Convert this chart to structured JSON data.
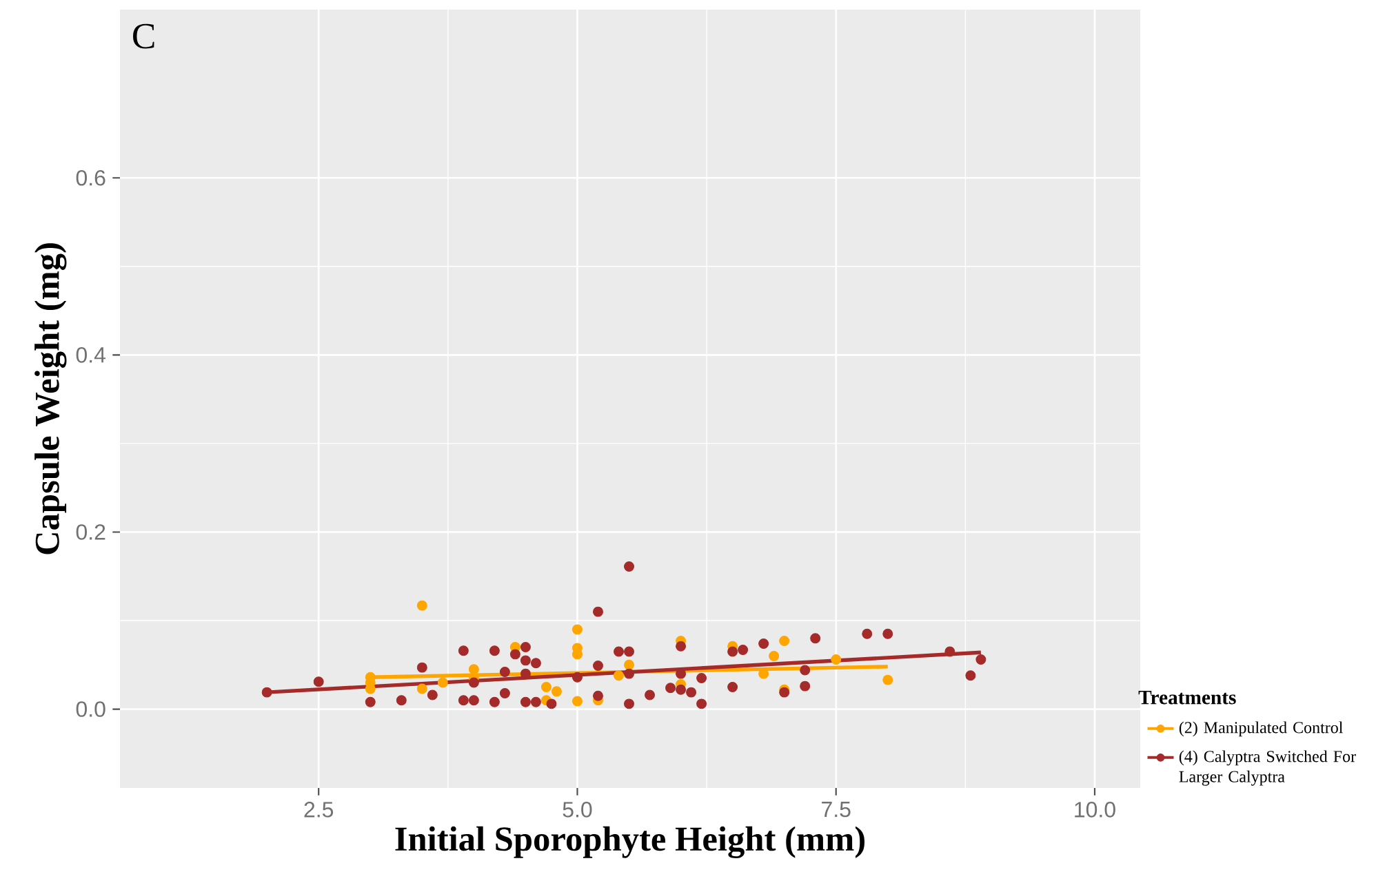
{
  "chart_data": {
    "type": "scatter",
    "xlabel": "Initial Sporophyte Height (mm)",
    "ylabel": "Capsule Weight (mg)",
    "legend_title": "Treatments",
    "annotations": [
      "C"
    ],
    "xlim": [
      0.58,
      10.44
    ],
    "ylim": [
      -0.089,
      0.79
    ],
    "xticks": [
      2.5,
      {
        "value": 5,
        "label": "5.0"
      },
      7.5,
      {
        "value": 10,
        "label": "10.0"
      }
    ],
    "yticks": [
      {
        "value": 0,
        "label": "0.0"
      },
      0.2,
      0.4,
      0.6
    ],
    "grid": true,
    "legend": "right",
    "marker": "circle",
    "series": [
      {
        "name": "(2) Manipulated Control",
        "color": "#ffa500",
        "x": [
          3.5,
          3.0,
          3.0,
          3.0,
          3.5,
          3.7,
          4.0,
          4.0,
          4.4,
          4.7,
          4.8,
          4.7,
          5.0,
          5.0,
          5.0,
          5.0,
          5.2,
          5.5,
          5.4,
          6.0,
          6.0,
          6.5,
          6.8,
          6.9,
          7.0,
          7.0,
          7.5,
          8.0
        ],
        "values": [
          0.117,
          0.036,
          0.03,
          0.023,
          0.023,
          0.03,
          0.045,
          0.035,
          0.07,
          0.025,
          0.02,
          0.01,
          0.09,
          0.069,
          0.062,
          0.009,
          0.01,
          0.05,
          0.038,
          0.077,
          0.028,
          0.071,
          0.04,
          0.06,
          0.077,
          0.022,
          0.056,
          0.033
        ]
      },
      {
        "name": "(4) Calyptra Switched For Larger Calyptra",
        "color": "#a52a2a",
        "x": [
          2.0,
          2.5,
          3.0,
          3.3,
          3.5,
          3.6,
          3.9,
          3.9,
          4.0,
          4.0,
          4.2,
          4.2,
          4.3,
          4.3,
          4.4,
          4.5,
          4.5,
          4.6,
          4.5,
          4.5,
          4.6,
          4.75,
          5.0,
          5.2,
          5.2,
          5.2,
          5.4,
          5.5,
          5.5,
          5.5,
          5.5,
          5.7,
          5.9,
          6.0,
          6.0,
          6.0,
          6.1,
          6.2,
          6.2,
          6.5,
          6.5,
          6.6,
          6.8,
          7.0,
          7.2,
          7.2,
          7.3,
          7.8,
          8.0,
          8.6,
          8.8,
          8.9
        ],
        "values": [
          0.019,
          0.031,
          0.008,
          0.01,
          0.047,
          0.016,
          0.066,
          0.01,
          0.01,
          0.03,
          0.066,
          0.008,
          0.042,
          0.018,
          0.062,
          0.07,
          0.055,
          0.052,
          0.04,
          0.008,
          0.008,
          0.006,
          0.036,
          0.11,
          0.049,
          0.015,
          0.065,
          0.065,
          0.161,
          0.04,
          0.006,
          0.016,
          0.024,
          0.071,
          0.04,
          0.022,
          0.019,
          0.035,
          0.006,
          0.065,
          0.025,
          0.067,
          0.074,
          0.019,
          0.044,
          0.026,
          0.08,
          0.085,
          0.085,
          0.065,
          0.038,
          0.056
        ]
      },
      {
        "color": "#ffa500",
        "type": "line",
        "marker": "none",
        "x": [
          3.0,
          8.0
        ],
        "values": [
          0.036,
          0.048
        ]
      },
      {
        "color": "#a52a2a",
        "type": "line",
        "marker": "none",
        "x": [
          2.0,
          8.9
        ],
        "values": [
          0.019,
          0.064
        ]
      }
    ]
  }
}
